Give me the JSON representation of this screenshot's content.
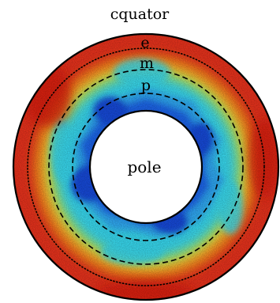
{
  "labels": {
    "outer": "cquator",
    "e": "e",
    "m": "m",
    "p": "p",
    "inner": "pole"
  },
  "colors": {
    "outer_band": "#e8321c",
    "outer_band_hot": "#d81a10",
    "orange_band": "#f7851f",
    "yellow_band": "#f2d838",
    "green_band": "#9be870",
    "cyan_band": "#39d8ee",
    "light_blue": "#2fa8f2",
    "blue_core": "#1c64e8",
    "deep_blue": "#1448d8",
    "inner_hole": "#ffffff",
    "outline": "#000000"
  },
  "line_styles": {
    "e_circle": "dotted",
    "m_circle": "dashed",
    "p_circle": "dashed"
  }
}
